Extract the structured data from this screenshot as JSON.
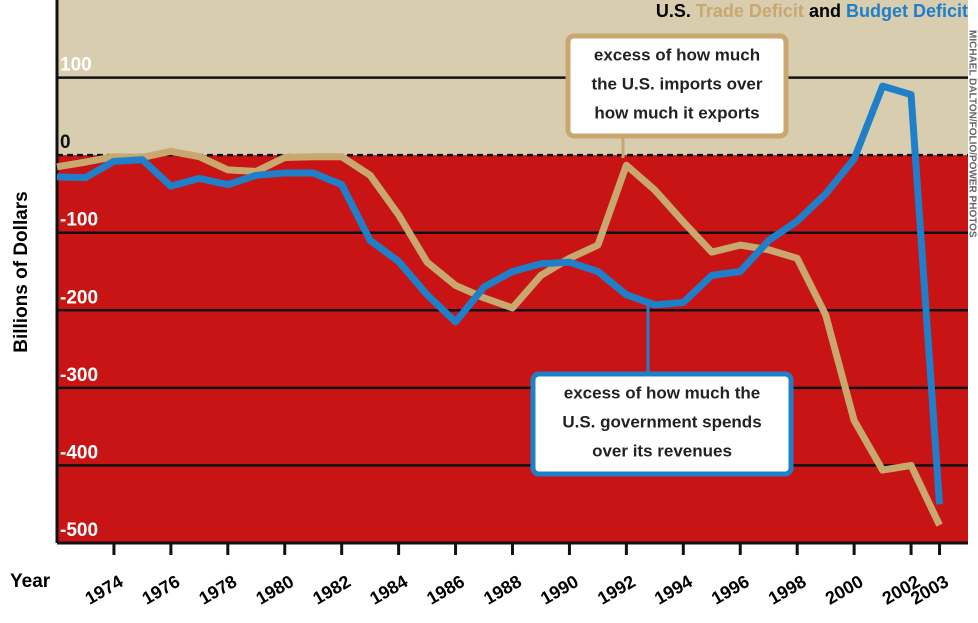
{
  "chart_data": {
    "type": "line",
    "y_label": "Billions of Dollars",
    "x_label": "Year",
    "legend_prefix": "U.S.",
    "legend_joiner": "and",
    "credit": "MICHAEL DALTON/FOLIO/POWER PHOTOS",
    "x": [
      1972,
      1973,
      1974,
      1975,
      1976,
      1977,
      1978,
      1979,
      1980,
      1981,
      1982,
      1983,
      1984,
      1985,
      1986,
      1987,
      1988,
      1989,
      1990,
      1991,
      1992,
      1993,
      1994,
      1995,
      1996,
      1997,
      1998,
      1999,
      2000,
      2001,
      2002,
      2003
    ],
    "series": [
      {
        "name": "Trade Deficit",
        "color": "#c8a86e",
        "values": [
          -15,
          -9,
          -2,
          -3,
          5,
          -2,
          -19,
          -21,
          -3,
          -2,
          -2,
          -26,
          -77,
          -138,
          -168,
          -184,
          -197,
          -155,
          -133,
          -116,
          -13,
          -45,
          -86,
          -125,
          -116,
          -122,
          -133,
          -206,
          -342,
          -406,
          -400,
          -477
        ]
      },
      {
        "name": "Budget Deficit",
        "color": "#1f7fc8",
        "values": [
          -28,
          -29,
          -8,
          -6,
          -40,
          -30,
          -38,
          -26,
          -23,
          -23,
          -38,
          -110,
          -137,
          -180,
          -215,
          -170,
          -150,
          -140,
          -138,
          -150,
          -180,
          -193,
          -190,
          -155,
          -150,
          -110,
          -85,
          -50,
          -5,
          89,
          78,
          -450
        ]
      }
    ],
    "annotations": [
      {
        "text": [
          "excess of how much",
          "the U.S. imports over",
          "how much it exports"
        ],
        "series": 0
      },
      {
        "text": [
          "excess of how much the",
          "U.S. government spends",
          "over its revenues"
        ],
        "series": 1
      }
    ],
    "xlim": [
      1972,
      2004
    ],
    "ylim": [
      -500,
      200
    ],
    "xticks": [
      1974,
      1976,
      1978,
      1980,
      1982,
      1984,
      1986,
      1988,
      1990,
      1992,
      1994,
      1996,
      1998,
      2000,
      2002,
      2003
    ],
    "yticks": [
      100,
      0,
      -100,
      -200,
      -300,
      -400,
      -500
    ],
    "grid": true
  }
}
